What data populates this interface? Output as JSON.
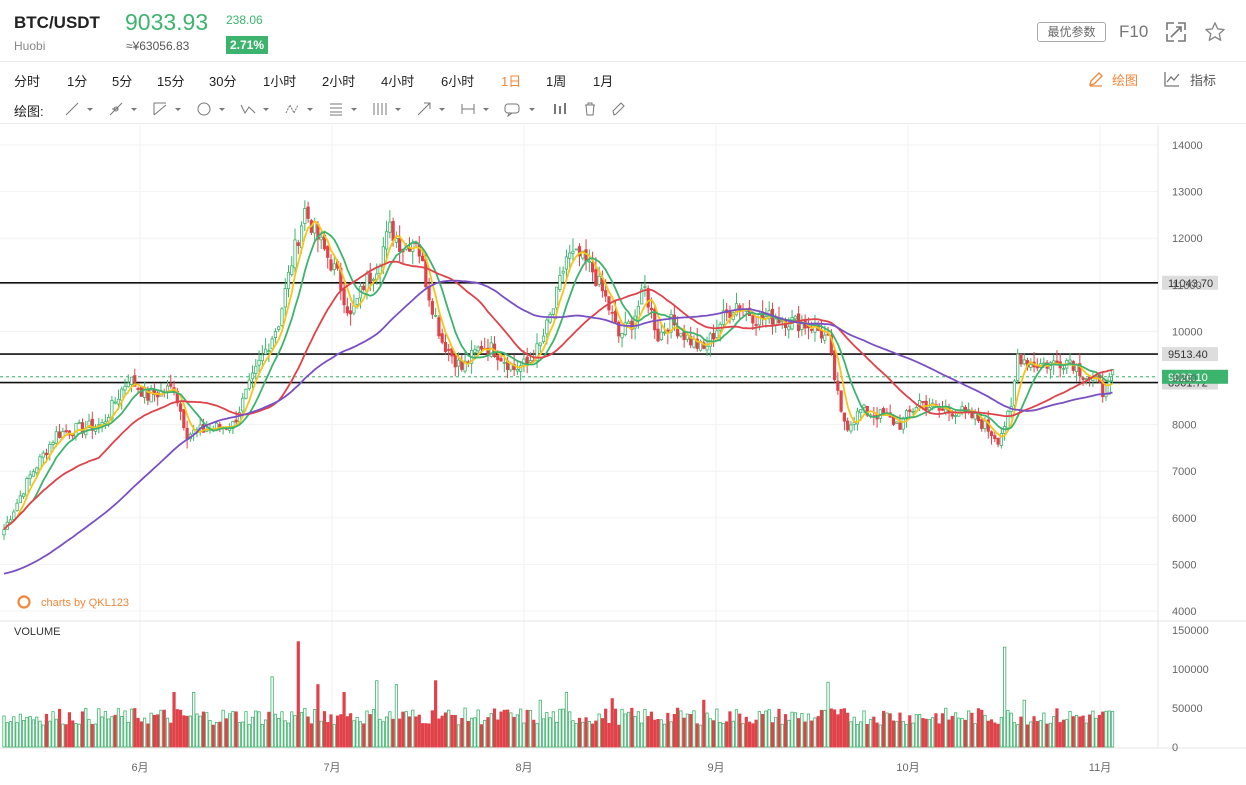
{
  "header": {
    "pair": "BTC/USDT",
    "exchange": "Huobi",
    "price": "9033.93",
    "cny_price": "≈¥63056.83",
    "change": "238.06",
    "change_pct": "2.71%",
    "best_params_label": "最优参数",
    "f10_label": "F10",
    "fullscreen_icon": "fullscreen-icon",
    "favorite_icon": "star-icon",
    "up_color": "#3db46d"
  },
  "timeframes": {
    "items": [
      "分时",
      "1分",
      "5分",
      "15分",
      "30分",
      "1小时",
      "2小时",
      "4小时",
      "6小时",
      "1日",
      "1周",
      "1月"
    ],
    "active": "1日",
    "active_color": "#f0873a"
  },
  "tools": {
    "draw_label": "绘图",
    "indicator_label": "指标"
  },
  "drawing_bar": {
    "label": "绘图:",
    "tools": [
      "trend-line-icon",
      "ray-line-icon",
      "channel-icon",
      "ellipse-icon",
      "wave-icon",
      "pattern-icon",
      "fibonacci-icon",
      "period-lines-icon",
      "arrow-icon",
      "measure-icon",
      "text-note-icon",
      "bar-pattern-icon",
      "trash-icon",
      "eraser-icon"
    ]
  },
  "watermark": "charts by QKL123",
  "volume_label": "VOLUME",
  "chart_data": {
    "type": "candlestick",
    "x_labels": [
      "6月",
      "7月",
      "8月",
      "9月",
      "10月",
      "11月"
    ],
    "price_axis": {
      "ylim": [
        4000,
        14000
      ],
      "ticks": [
        "14000",
        "13000",
        "12000",
        "11000",
        "10000",
        "9000",
        "8000",
        "7000",
        "6000",
        "5000",
        "4000"
      ]
    },
    "volume_axis": {
      "ylim": [
        0,
        150000
      ],
      "ticks": [
        "150000",
        "100000",
        "50000",
        "0"
      ]
    },
    "horizontal_lines": [
      {
        "value": 11043.7,
        "label": "11043.70"
      },
      {
        "value": 9513.4,
        "label": "9513.40"
      },
      {
        "value": 8901.72,
        "label": "8901.72"
      }
    ],
    "current_price": {
      "value": 9026.1,
      "label": "9026.10"
    },
    "colors": {
      "up": "#3db46d",
      "down": "#e0424a",
      "ma5": "#f5c518",
      "ma10": "#3db46d",
      "ma30": "#e0424a",
      "ma60": "#7b4fc4"
    },
    "key_points": [
      [
        0,
        5750
      ],
      [
        8,
        6900
      ],
      [
        16,
        7800
      ],
      [
        22,
        7900
      ],
      [
        30,
        8000
      ],
      [
        38,
        9000
      ],
      [
        44,
        8600
      ],
      [
        52,
        8800
      ],
      [
        56,
        7800
      ],
      [
        62,
        7900
      ],
      [
        70,
        8000
      ],
      [
        78,
        9300
      ],
      [
        84,
        10200
      ],
      [
        88,
        11500
      ],
      [
        92,
        12600
      ],
      [
        96,
        12000
      ],
      [
        102,
        11200
      ],
      [
        106,
        10300
      ],
      [
        110,
        11000
      ],
      [
        114,
        11400
      ],
      [
        118,
        12200
      ],
      [
        122,
        11800
      ],
      [
        126,
        12000
      ],
      [
        130,
        10800
      ],
      [
        134,
        9800
      ],
      [
        138,
        9400
      ],
      [
        140,
        9200
      ],
      [
        146,
        9700
      ],
      [
        150,
        9600
      ],
      [
        156,
        9200
      ],
      [
        160,
        9300
      ],
      [
        164,
        9700
      ],
      [
        168,
        10500
      ],
      [
        172,
        11600
      ],
      [
        176,
        11600
      ],
      [
        180,
        11300
      ],
      [
        184,
        10700
      ],
      [
        188,
        9900
      ],
      [
        192,
        10200
      ],
      [
        196,
        10900
      ],
      [
        200,
        9900
      ],
      [
        204,
        10200
      ],
      [
        210,
        9800
      ],
      [
        214,
        9600
      ],
      [
        220,
        10300
      ],
      [
        224,
        10600
      ],
      [
        230,
        10300
      ],
      [
        236,
        10300
      ],
      [
        242,
        10200
      ],
      [
        248,
        10100
      ],
      [
        252,
        9800
      ],
      [
        256,
        8200
      ],
      [
        258,
        8000
      ],
      [
        262,
        8300
      ],
      [
        268,
        8200
      ],
      [
        274,
        8000
      ],
      [
        280,
        8500
      ],
      [
        286,
        8300
      ],
      [
        292,
        8300
      ],
      [
        298,
        8100
      ],
      [
        304,
        7700
      ],
      [
        308,
        8300
      ],
      [
        310,
        9500
      ],
      [
        314,
        9300
      ],
      [
        320,
        9300
      ],
      [
        326,
        9400
      ],
      [
        330,
        9100
      ],
      [
        334,
        8900
      ],
      [
        336,
        8700
      ],
      [
        339,
        9026
      ]
    ],
    "volume_peaks": [
      [
        52,
        70000
      ],
      [
        58,
        70000
      ],
      [
        82,
        90000
      ],
      [
        90,
        135000
      ],
      [
        96,
        80000
      ],
      [
        104,
        70000
      ],
      [
        114,
        85000
      ],
      [
        120,
        80000
      ],
      [
        132,
        85000
      ],
      [
        164,
        60000
      ],
      [
        172,
        70000
      ],
      [
        186,
        62000
      ],
      [
        214,
        60000
      ],
      [
        252,
        83000
      ],
      [
        306,
        128000
      ],
      [
        312,
        60000
      ]
    ]
  }
}
